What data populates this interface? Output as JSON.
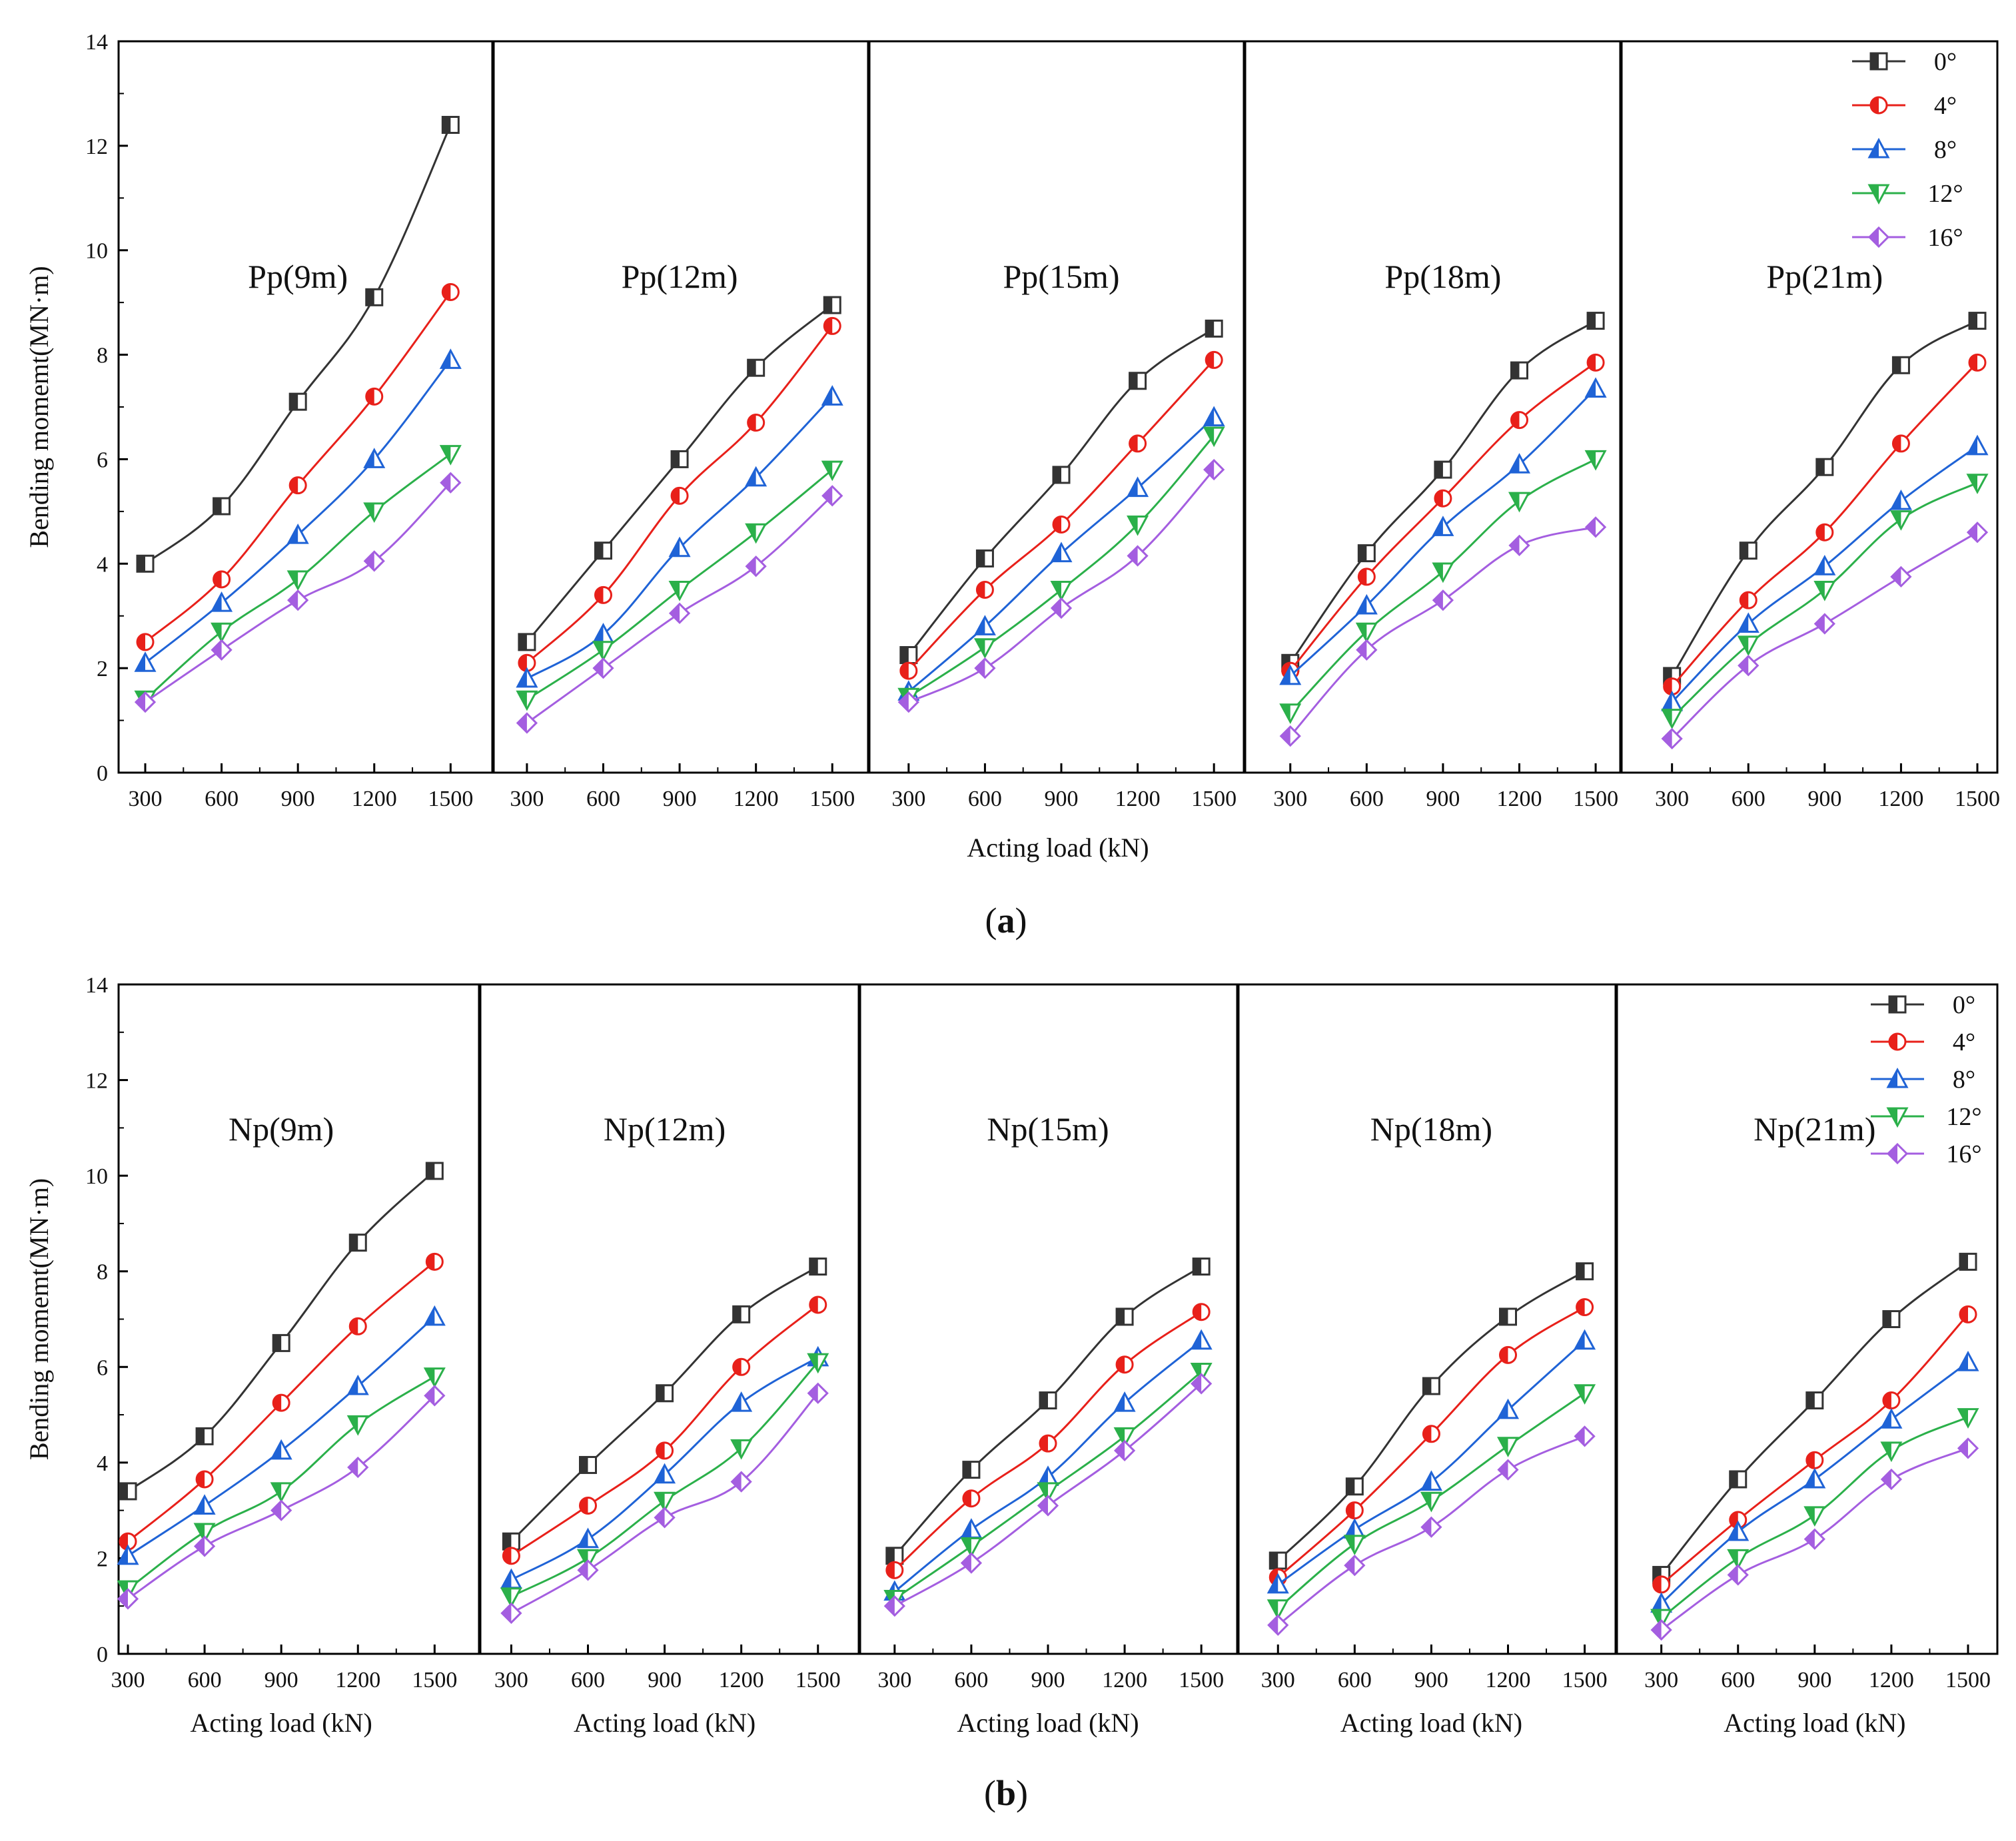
{
  "figure": {
    "x_tick_labels": [
      "300",
      "600",
      "900",
      "1200",
      "1500"
    ],
    "y_tick_labels": [
      "0",
      "2",
      "4",
      "6",
      "8",
      "10",
      "12",
      "14"
    ],
    "legend": [
      {
        "label": "0°",
        "color": "#333333",
        "marker": "square"
      },
      {
        "label": "4°",
        "color": "#e8201a",
        "marker": "circle"
      },
      {
        "label": "8°",
        "color": "#1f63d6",
        "marker": "triangle-up"
      },
      {
        "label": "12°",
        "color": "#2bb04a",
        "marker": "triangle-down"
      },
      {
        "label": "16°",
        "color": "#a45ee0",
        "marker": "diamond"
      }
    ]
  },
  "chart_data": [
    {
      "type": "line",
      "id": "a",
      "caption_letter": "a",
      "ylabel": "Bending momemt(MN·m)",
      "xlabel": "Acting load (kN)",
      "ylim": [
        0,
        14
      ],
      "categories": [
        300,
        600,
        900,
        1200,
        1500
      ],
      "panels": [
        {
          "title": "Pp(9m)",
          "series": [
            {
              "name": "0°",
              "values": [
                4.0,
                5.1,
                7.1,
                9.1,
                12.4
              ]
            },
            {
              "name": "4°",
              "values": [
                2.5,
                3.7,
                5.5,
                7.2,
                9.2
              ]
            },
            {
              "name": "8°",
              "values": [
                2.1,
                3.25,
                4.55,
                6.0,
                7.9
              ]
            },
            {
              "name": "12°",
              "values": [
                1.4,
                2.7,
                3.7,
                5.0,
                6.1
              ]
            },
            {
              "name": "16°",
              "values": [
                1.35,
                2.35,
                3.3,
                4.05,
                5.55
              ]
            }
          ]
        },
        {
          "title": "Pp(12m)",
          "series": [
            {
              "name": "0°",
              "values": [
                2.5,
                4.25,
                6.0,
                7.75,
                8.95
              ]
            },
            {
              "name": "4°",
              "values": [
                2.1,
                3.4,
                5.3,
                6.7,
                8.55
              ]
            },
            {
              "name": "8°",
              "values": [
                1.8,
                2.65,
                4.3,
                5.65,
                7.2
              ]
            },
            {
              "name": "12°",
              "values": [
                1.4,
                2.35,
                3.5,
                4.6,
                5.8
              ]
            },
            {
              "name": "16°",
              "values": [
                0.95,
                2.0,
                3.05,
                3.95,
                5.3
              ]
            }
          ]
        },
        {
          "title": "Pp(15m)",
          "series": [
            {
              "name": "0°",
              "values": [
                2.25,
                4.1,
                5.7,
                7.5,
                8.5
              ]
            },
            {
              "name": "4°",
              "values": [
                1.95,
                3.5,
                4.75,
                6.3,
                7.9
              ]
            },
            {
              "name": "8°",
              "values": [
                1.55,
                2.8,
                4.2,
                5.45,
                6.8
              ]
            },
            {
              "name": "12°",
              "values": [
                1.45,
                2.4,
                3.5,
                4.75,
                6.45
              ]
            },
            {
              "name": "16°",
              "values": [
                1.35,
                2.0,
                3.15,
                4.15,
                5.8
              ]
            }
          ]
        },
        {
          "title": "Pp(18m)",
          "series": [
            {
              "name": "0°",
              "values": [
                2.1,
                4.2,
                5.8,
                7.7,
                8.65
              ]
            },
            {
              "name": "4°",
              "values": [
                1.95,
                3.75,
                5.25,
                6.75,
                7.85
              ]
            },
            {
              "name": "8°",
              "values": [
                1.85,
                3.2,
                4.7,
                5.9,
                7.35
              ]
            },
            {
              "name": "12°",
              "values": [
                1.15,
                2.7,
                3.85,
                5.2,
                6.0
              ]
            },
            {
              "name": "16°",
              "values": [
                0.7,
                2.35,
                3.3,
                4.35,
                4.7
              ]
            }
          ]
        },
        {
          "title": "Pp(21m)",
          "series": [
            {
              "name": "0°",
              "values": [
                1.85,
                4.25,
                5.85,
                7.8,
                8.65
              ]
            },
            {
              "name": "4°",
              "values": [
                1.65,
                3.3,
                4.6,
                6.3,
                7.85
              ]
            },
            {
              "name": "8°",
              "values": [
                1.35,
                2.85,
                3.95,
                5.2,
                6.25
              ]
            },
            {
              "name": "12°",
              "values": [
                1.05,
                2.45,
                3.5,
                4.85,
                5.55
              ]
            },
            {
              "name": "16°",
              "values": [
                0.65,
                2.05,
                2.85,
                3.75,
                4.6
              ]
            }
          ]
        }
      ]
    },
    {
      "type": "line",
      "id": "b",
      "caption_letter": "b",
      "ylabel": "Bending momemt(MN·m)",
      "xlabel": "Acting load (kN)",
      "ylim": [
        0,
        14
      ],
      "categories": [
        300,
        600,
        900,
        1200,
        1500
      ],
      "panels": [
        {
          "title": "Np(9m)",
          "series": [
            {
              "name": "0°",
              "values": [
                3.4,
                4.55,
                6.5,
                8.6,
                10.1
              ]
            },
            {
              "name": "4°",
              "values": [
                2.35,
                3.65,
                5.25,
                6.85,
                8.2
              ]
            },
            {
              "name": "8°",
              "values": [
                2.05,
                3.1,
                4.25,
                5.6,
                7.05
              ]
            },
            {
              "name": "12°",
              "values": [
                1.35,
                2.55,
                3.4,
                4.8,
                5.8
              ]
            },
            {
              "name": "16°",
              "values": [
                1.15,
                2.25,
                3.0,
                3.9,
                5.4
              ]
            }
          ]
        },
        {
          "title": "Np(12m)",
          "series": [
            {
              "name": "0°",
              "values": [
                2.35,
                3.95,
                5.45,
                7.1,
                8.1
              ]
            },
            {
              "name": "4°",
              "values": [
                2.05,
                3.1,
                4.25,
                6.0,
                7.3
              ]
            },
            {
              "name": "8°",
              "values": [
                1.55,
                2.4,
                3.75,
                5.25,
                6.2
              ]
            },
            {
              "name": "12°",
              "values": [
                1.2,
                2.0,
                3.2,
                4.3,
                6.1
              ]
            },
            {
              "name": "16°",
              "values": [
                0.85,
                1.75,
                2.85,
                3.6,
                5.45
              ]
            }
          ]
        },
        {
          "title": "Np(15m)",
          "series": [
            {
              "name": "0°",
              "values": [
                2.05,
                3.85,
                5.3,
                7.05,
                8.1
              ]
            },
            {
              "name": "4°",
              "values": [
                1.75,
                3.25,
                4.4,
                6.05,
                7.15
              ]
            },
            {
              "name": "8°",
              "values": [
                1.3,
                2.6,
                3.7,
                5.25,
                6.55
              ]
            },
            {
              "name": "12°",
              "values": [
                1.15,
                2.25,
                3.4,
                4.55,
                5.9
              ]
            },
            {
              "name": "16°",
              "values": [
                1.0,
                1.9,
                3.1,
                4.25,
                5.65
              ]
            }
          ]
        },
        {
          "title": "Np(18m)",
          "series": [
            {
              "name": "0°",
              "values": [
                1.95,
                3.5,
                5.6,
                7.05,
                8.0
              ]
            },
            {
              "name": "4°",
              "values": [
                1.6,
                3.0,
                4.6,
                6.25,
                7.25
              ]
            },
            {
              "name": "8°",
              "values": [
                1.45,
                2.6,
                3.6,
                5.1,
                6.55
              ]
            },
            {
              "name": "12°",
              "values": [
                0.95,
                2.3,
                3.2,
                4.35,
                5.45
              ]
            },
            {
              "name": "16°",
              "values": [
                0.6,
                1.85,
                2.65,
                3.85,
                4.55
              ]
            }
          ]
        },
        {
          "title": "Np(21m)",
          "series": [
            {
              "name": "0°",
              "values": [
                1.65,
                3.65,
                5.3,
                7.0,
                8.2
              ]
            },
            {
              "name": "4°",
              "values": [
                1.45,
                2.8,
                4.05,
                5.3,
                7.1
              ]
            },
            {
              "name": "8°",
              "values": [
                1.05,
                2.55,
                3.65,
                4.9,
                6.1
              ]
            },
            {
              "name": "12°",
              "values": [
                0.75,
                2.0,
                2.9,
                4.25,
                4.95
              ]
            },
            {
              "name": "16°",
              "values": [
                0.5,
                1.65,
                2.4,
                3.65,
                4.3
              ]
            }
          ]
        }
      ]
    }
  ]
}
